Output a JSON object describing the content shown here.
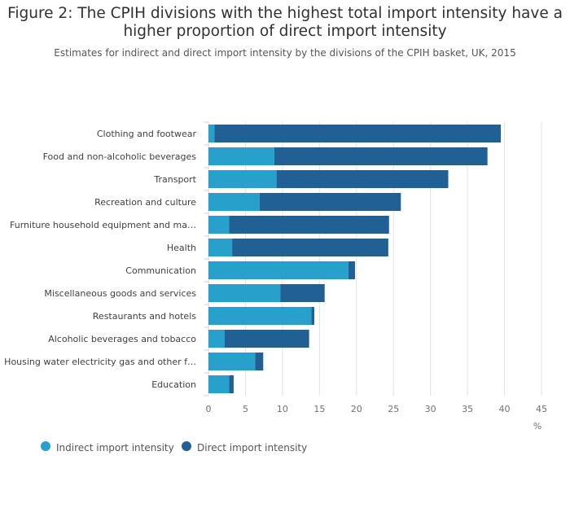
{
  "chart_data": {
    "type": "bar",
    "orientation": "horizontal",
    "stacked": true,
    "title": "Figure 2: The CPIH divisions with the highest total import intensity have a higher proportion of direct import intensity",
    "subtitle": "Estimates for indirect and direct import intensity by the divisions of the CPIH basket, UK, 2015",
    "xlabel": "%",
    "xlim": [
      0,
      45
    ],
    "xticks": [
      0,
      5,
      10,
      15,
      20,
      25,
      30,
      35,
      40,
      45
    ],
    "grid": true,
    "legend": "bottom-left",
    "categories": [
      "Clothing and footwear",
      "Food and non-alcoholic beverages",
      "Transport",
      "Recreation and culture",
      "Furniture household equipment and ma…",
      "Health",
      "Communication",
      "Miscellaneous goods and services",
      "Restaurants and hotels",
      "Alcoholic beverages and tobacco",
      "Housing water electricity gas and other f…",
      "Education"
    ],
    "series": [
      {
        "name": "Indirect import intensity",
        "color": "#27a0cc",
        "values": [
          0.8,
          8.9,
          9.2,
          6.9,
          2.8,
          3.2,
          18.9,
          9.7,
          13.9,
          2.2,
          6.3,
          2.8
        ]
      },
      {
        "name": "Direct import intensity",
        "color": "#206095",
        "values": [
          38.7,
          28.8,
          23.2,
          19.1,
          21.6,
          21.1,
          0.9,
          6.0,
          0.4,
          11.4,
          1.1,
          0.6
        ]
      }
    ]
  }
}
